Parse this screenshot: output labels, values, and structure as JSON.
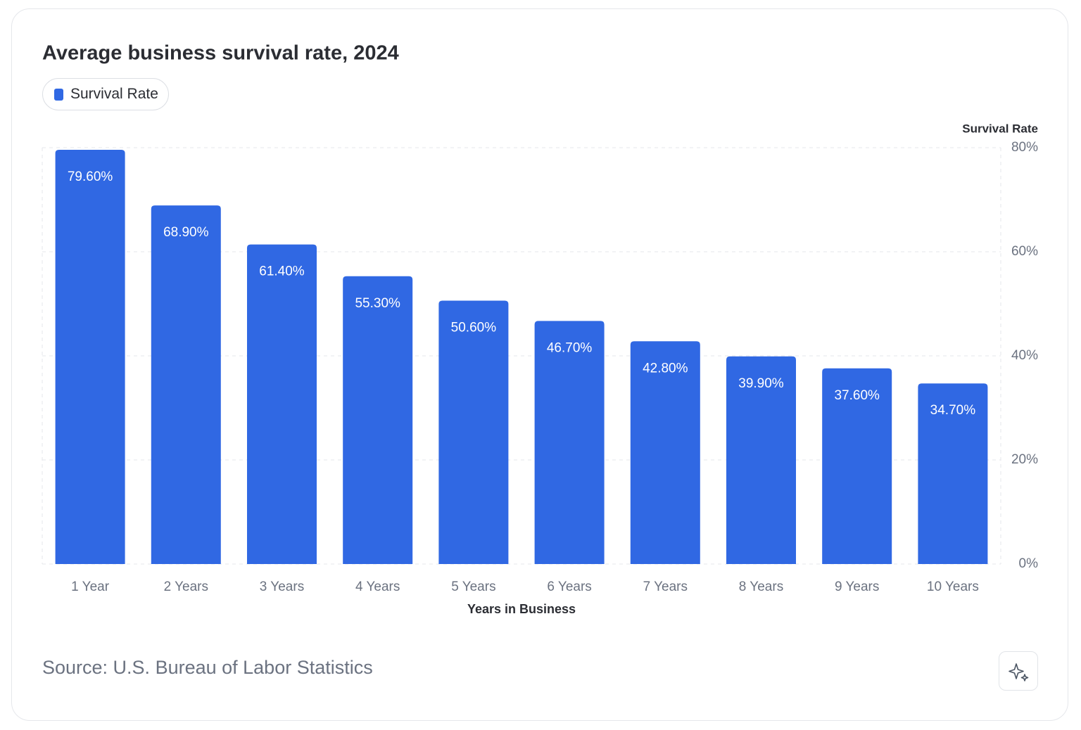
{
  "chart_data": {
    "type": "bar",
    "title": "Average business survival rate, 2024",
    "categories": [
      "1 Year",
      "2 Years",
      "3 Years",
      "4 Years",
      "5 Years",
      "6 Years",
      "7 Years",
      "8 Years",
      "9 Years",
      "10 Years"
    ],
    "series": [
      {
        "name": "Survival Rate",
        "color": "#3068e3",
        "values": [
          79.6,
          68.9,
          61.4,
          55.3,
          50.6,
          46.7,
          42.8,
          39.9,
          37.6,
          34.7
        ],
        "value_labels": [
          "79.60%",
          "68.90%",
          "61.40%",
          "55.30%",
          "50.60%",
          "46.70%",
          "42.80%",
          "39.90%",
          "37.60%",
          "34.70%"
        ]
      }
    ],
    "x_label": "Years in Business",
    "y_label": "Survival Rate",
    "ylim": [
      0,
      80
    ],
    "yticks": [
      {
        "value": 0,
        "label": "0%"
      },
      {
        "value": 20,
        "label": "20%"
      },
      {
        "value": 40,
        "label": "40%"
      },
      {
        "value": 60,
        "label": "60%"
      },
      {
        "value": 80,
        "label": "80%"
      }
    ],
    "grid": true,
    "y_axis_side": "right",
    "source": "Source: U.S. Bureau of Labor Statistics"
  }
}
